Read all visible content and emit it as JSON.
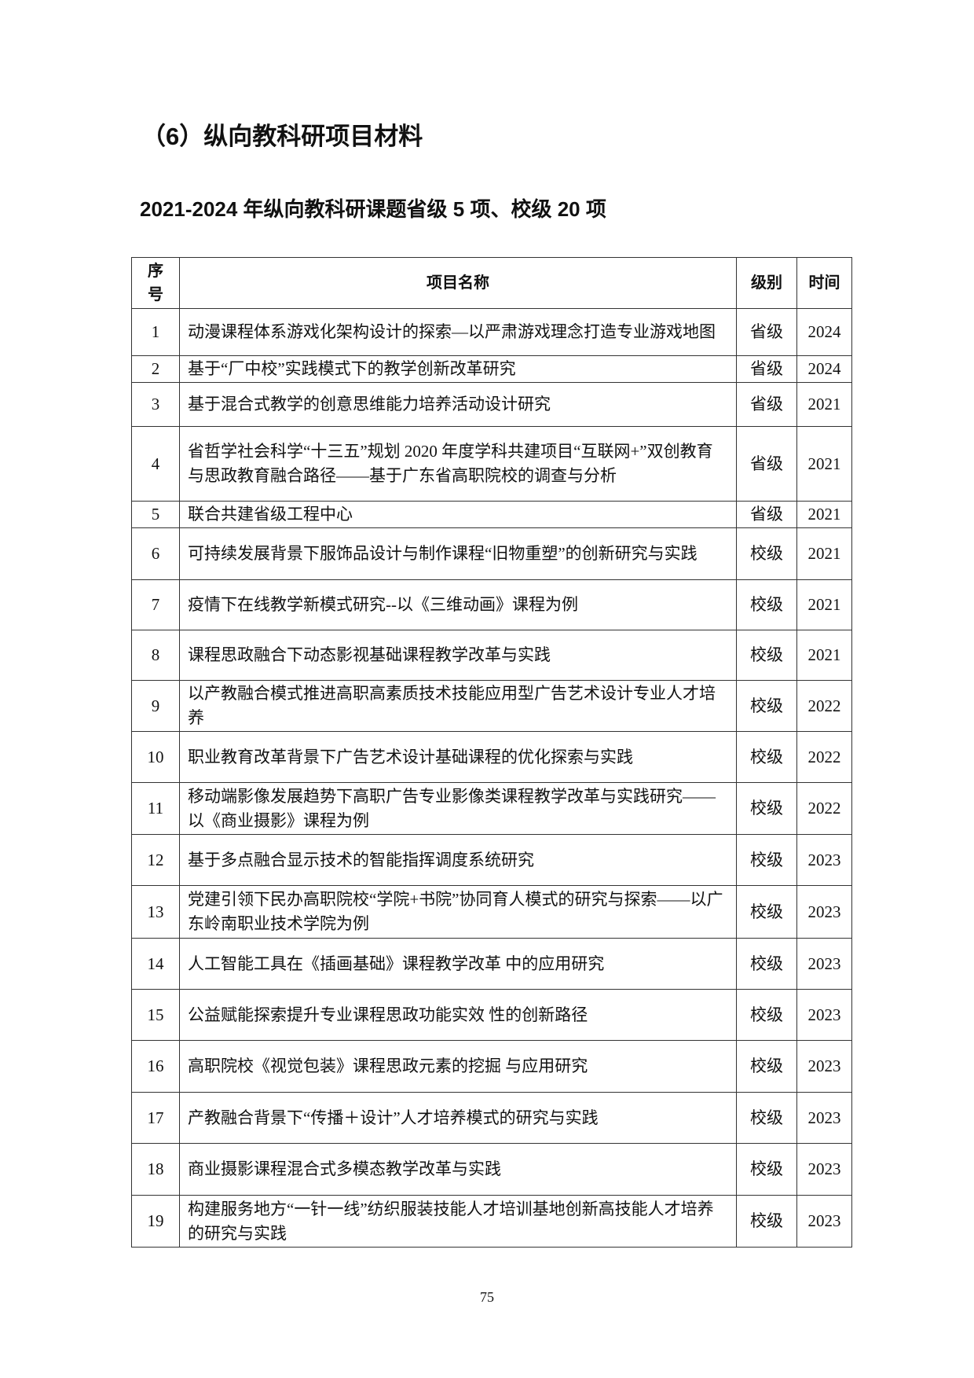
{
  "section_title": "（6）纵向教科研项目材料",
  "subtitle": "2021-2024 年纵向教科研课题省级 5 项、校级 20 项",
  "table": {
    "headers": {
      "index": "序号",
      "name": "项目名称",
      "level": "级别",
      "year": "时间"
    },
    "rows": [
      {
        "no": "1",
        "name": "动漫课程体系游戏化架构设计的探索—以严肃游戏理念打造专业游戏地图",
        "level": "省级",
        "year": "2024"
      },
      {
        "no": "2",
        "name": "基于“厂中校”实践模式下的教学创新改革研究",
        "level": "省级",
        "year": "2024"
      },
      {
        "no": "3",
        "name": "基于混合式教学的创意思维能力培养活动设计研究",
        "level": "省级",
        "year": "2021"
      },
      {
        "no": "4",
        "name": "省哲学社会科学“十三五”规划 2020 年度学科共建项目“互联网+”双创教育与思政教育融合路径——基于广东省高职院校的调查与分析",
        "level": "省级",
        "year": "2021"
      },
      {
        "no": "5",
        "name": "联合共建省级工程中心",
        "level": "省级",
        "year": "2021"
      },
      {
        "no": "6",
        "name": "可持续发展背景下服饰品设计与制作课程“旧物重塑”的创新研究与实践",
        "level": "校级",
        "year": "2021"
      },
      {
        "no": "7",
        "name": "疫情下在线教学新模式研究--以《三维动画》课程为例",
        "level": "校级",
        "year": "2021"
      },
      {
        "no": "8",
        "name": "课程思政融合下动态影视基础课程教学改革与实践",
        "level": "校级",
        "year": "2021"
      },
      {
        "no": "9",
        "name": "以产教融合模式推进高职高素质技术技能应用型广告艺术设计专业人才培养",
        "level": "校级",
        "year": "2022"
      },
      {
        "no": "10",
        "name": "职业教育改革背景下广告艺术设计基础课程的优化探索与实践",
        "level": "校级",
        "year": "2022"
      },
      {
        "no": "11",
        "name": "移动端影像发展趋势下高职广告专业影像类课程教学改革与实践研究——以《商业摄影》课程为例",
        "level": "校级",
        "year": "2022"
      },
      {
        "no": "12",
        "name": "基于多点融合显示技术的智能指挥调度系统研究",
        "level": "校级",
        "year": "2023"
      },
      {
        "no": "13",
        "name": "党建引领下民办高职院校“学院+书院”协同育人模式的研究与探索——以广东岭南职业技术学院为例",
        "level": "校级",
        "year": "2023"
      },
      {
        "no": "14",
        "name": "人工智能工具在《插画基础》课程教学改革 中的应用研究",
        "level": "校级",
        "year": "2023"
      },
      {
        "no": "15",
        "name": "公益赋能探索提升专业课程思政功能实效 性的创新路径",
        "level": "校级",
        "year": "2023"
      },
      {
        "no": "16",
        "name": "高职院校《视觉包装》课程思政元素的挖掘 与应用研究",
        "level": "校级",
        "year": "2023"
      },
      {
        "no": "17",
        "name": "产教融合背景下“传播＋设计”人才培养模式的研究与实践",
        "level": "校级",
        "year": "2023"
      },
      {
        "no": "18",
        "name": "商业摄影课程混合式多模态教学改革与实践",
        "level": "校级",
        "year": "2023"
      },
      {
        "no": "19",
        "name": "构建服务地方“一针一线”纺织服装技能人才培训基地创新高技能人才培养的研究与实践",
        "level": "校级",
        "year": "2023"
      }
    ]
  },
  "page_number": "75"
}
